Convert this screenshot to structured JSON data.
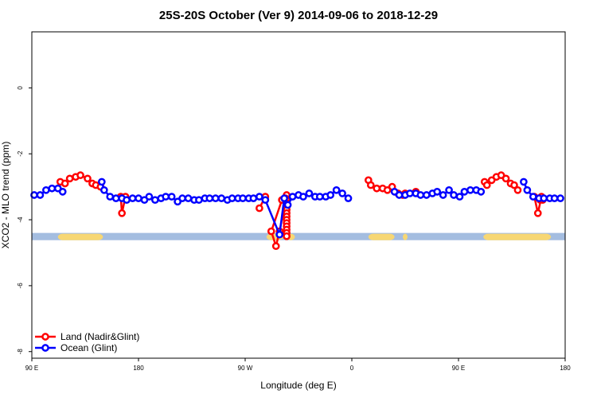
{
  "chart_data": {
    "type": "line",
    "title": "25S-20S October (Ver 9)   2014-09-06 to 2018-12-29",
    "xlabel": "Longitude (deg E)",
    "ylabel": "XCO2 - MLO trend (ppm)",
    "xlim": [
      90,
      540
    ],
    "ylim": [
      -8.2,
      1.7
    ],
    "x_ticks": [
      {
        "value": 90,
        "label": "90 E"
      },
      {
        "value": 180,
        "label": "180"
      },
      {
        "value": 270,
        "label": "90 W"
      },
      {
        "value": 360,
        "label": "0"
      },
      {
        "value": 450,
        "label": "90 E"
      },
      {
        "value": 540,
        "label": "180"
      }
    ],
    "y_ticks": [
      {
        "value": 0,
        "label": "0"
      },
      {
        "value": -2,
        "label": "-2"
      },
      {
        "value": -4,
        "label": "-4"
      },
      {
        "value": -6,
        "label": "-6"
      },
      {
        "value": -8,
        "label": "-8"
      }
    ],
    "legend_position": "bottom-left",
    "land_mask_band": {
      "y_range": [
        -4.62,
        -4.4
      ],
      "ocean_color": "#a4bde0",
      "land_color": "#f7d774",
      "land_segments": [
        [
          112,
          150
        ],
        [
          288,
          302
        ],
        [
          305,
          312
        ],
        [
          374,
          396
        ],
        [
          403,
          407
        ],
        [
          471,
          528
        ]
      ]
    },
    "series": [
      {
        "name": "Land (Nadir&Glint)",
        "color": "#ff0000",
        "points": [
          [
            114,
            -2.85
          ],
          [
            118,
            -2.9
          ],
          [
            122,
            -2.75
          ],
          [
            127,
            -2.7
          ],
          [
            131,
            -2.65
          ],
          [
            137,
            -2.75
          ],
          [
            141,
            -2.9
          ],
          [
            144,
            -2.95
          ],
          [
            148,
            -3.0
          ],
          [
            165,
            -3.3
          ],
          [
            166,
            -3.8
          ],
          [
            169,
            -3.3
          ],
          [
            282,
            -3.65
          ],
          [
            287,
            -3.3
          ],
          [
            301,
            -3.4
          ],
          [
            292,
            -4.35
          ],
          [
            296,
            -4.8
          ],
          [
            299,
            -4.35
          ],
          [
            305,
            -3.25
          ],
          [
            304,
            -3.35
          ],
          [
            305,
            -3.4
          ],
          [
            305,
            -3.5
          ],
          [
            305,
            -3.6
          ],
          [
            305,
            -3.7
          ],
          [
            305,
            -3.8
          ],
          [
            305,
            -3.9
          ],
          [
            305,
            -4.0
          ],
          [
            305,
            -4.1
          ],
          [
            305,
            -4.2
          ],
          [
            305,
            -4.3
          ],
          [
            305,
            -4.4
          ],
          [
            305,
            -4.5
          ],
          [
            374,
            -2.8
          ],
          [
            376,
            -2.95
          ],
          [
            381,
            -3.05
          ],
          [
            386,
            -3.05
          ],
          [
            390,
            -3.1
          ],
          [
            394,
            -3.0
          ],
          [
            399,
            -3.2
          ],
          [
            403,
            -3.25
          ],
          [
            405,
            -3.2
          ],
          [
            414,
            -3.15
          ],
          [
            472,
            -2.85
          ],
          [
            474,
            -2.95
          ],
          [
            478,
            -2.8
          ],
          [
            482,
            -2.7
          ],
          [
            486,
            -2.65
          ],
          [
            490,
            -2.75
          ],
          [
            494,
            -2.9
          ],
          [
            497,
            -2.95
          ],
          [
            500,
            -3.1
          ],
          [
            514,
            -3.3
          ],
          [
            517,
            -3.8
          ],
          [
            520,
            -3.3
          ],
          [
            519,
            -3.4
          ],
          [
            521,
            -3.4
          ]
        ]
      },
      {
        "name": "Ocean (Glint)",
        "color": "#0000ff",
        "points": [
          [
            92,
            -3.25
          ],
          [
            97,
            -3.25
          ],
          [
            102,
            -3.1
          ],
          [
            107,
            -3.05
          ],
          [
            112,
            -3.05
          ],
          [
            116,
            -3.15
          ],
          [
            149,
            -2.85
          ],
          [
            151,
            -3.1
          ],
          [
            156,
            -3.3
          ],
          [
            161,
            -3.35
          ],
          [
            166,
            -3.35
          ],
          [
            170,
            -3.4
          ],
          [
            175,
            -3.35
          ],
          [
            180,
            -3.35
          ],
          [
            185,
            -3.4
          ],
          [
            189,
            -3.3
          ],
          [
            194,
            -3.4
          ],
          [
            199,
            -3.35
          ],
          [
            203,
            -3.3
          ],
          [
            208,
            -3.3
          ],
          [
            213,
            -3.45
          ],
          [
            217,
            -3.35
          ],
          [
            222,
            -3.35
          ],
          [
            227,
            -3.4
          ],
          [
            231,
            -3.4
          ],
          [
            236,
            -3.35
          ],
          [
            240,
            -3.35
          ],
          [
            245,
            -3.35
          ],
          [
            250,
            -3.35
          ],
          [
            255,
            -3.4
          ],
          [
            259,
            -3.35
          ],
          [
            264,
            -3.35
          ],
          [
            268,
            -3.35
          ],
          [
            273,
            -3.35
          ],
          [
            277,
            -3.35
          ],
          [
            282,
            -3.3
          ],
          [
            287,
            -3.4
          ],
          [
            299,
            -4.45
          ],
          [
            303,
            -3.35
          ],
          [
            306,
            -3.55
          ],
          [
            310,
            -3.3
          ],
          [
            315,
            -3.25
          ],
          [
            319,
            -3.3
          ],
          [
            324,
            -3.2
          ],
          [
            329,
            -3.3
          ],
          [
            333,
            -3.3
          ],
          [
            338,
            -3.3
          ],
          [
            342,
            -3.25
          ],
          [
            347,
            -3.1
          ],
          [
            352,
            -3.2
          ],
          [
            357,
            -3.35
          ],
          [
            396,
            -3.15
          ],
          [
            400,
            -3.25
          ],
          [
            405,
            -3.25
          ],
          [
            409,
            -3.2
          ],
          [
            414,
            -3.2
          ],
          [
            418,
            -3.25
          ],
          [
            423,
            -3.25
          ],
          [
            428,
            -3.2
          ],
          [
            432,
            -3.15
          ],
          [
            437,
            -3.25
          ],
          [
            442,
            -3.1
          ],
          [
            446,
            -3.25
          ],
          [
            451,
            -3.3
          ],
          [
            455,
            -3.15
          ],
          [
            460,
            -3.1
          ],
          [
            465,
            -3.1
          ],
          [
            469,
            -3.15
          ],
          [
            505,
            -2.85
          ],
          [
            508,
            -3.1
          ],
          [
            513,
            -3.3
          ],
          [
            518,
            -3.35
          ],
          [
            522,
            -3.35
          ],
          [
            527,
            -3.35
          ],
          [
            531,
            -3.35
          ],
          [
            536,
            -3.35
          ]
        ]
      }
    ]
  }
}
